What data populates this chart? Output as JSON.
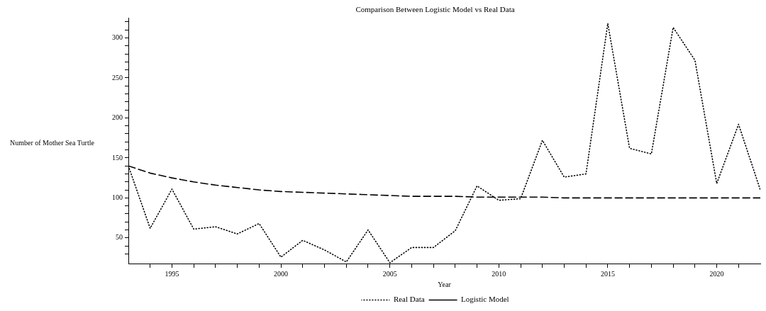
{
  "chart_data": {
    "type": "line",
    "title": "Comparison Between Logistic Model vs Real Data",
    "xlabel": "Year",
    "ylabel": "Number of Mother Sea Turtle",
    "x": [
      1993,
      1994,
      1995,
      1996,
      1997,
      1998,
      1999,
      2000,
      2001,
      2002,
      2003,
      2004,
      2005,
      2006,
      2007,
      2008,
      2009,
      2010,
      2011,
      2012,
      2013,
      2014,
      2015,
      2016,
      2017,
      2018,
      2019,
      2020,
      2021,
      2022
    ],
    "series": [
      {
        "name": "Real Data",
        "color": "#000000",
        "line_style": "dotted",
        "values": [
          140,
          62,
          111,
          61,
          64,
          55,
          68,
          26,
          47,
          35,
          20,
          60,
          19,
          38,
          38,
          59,
          115,
          97,
          99,
          172,
          126,
          130,
          318,
          162,
          155,
          313,
          272,
          118,
          192,
          110
        ]
      },
      {
        "name": "Logistic Model",
        "color": "#000000",
        "line_style": "dashed",
        "values": [
          140,
          131,
          125,
          120,
          116,
          113,
          110,
          108,
          107,
          106,
          105,
          104,
          103,
          102,
          102,
          102,
          101,
          101,
          101,
          101,
          100,
          100,
          100,
          100,
          100,
          100,
          100,
          100,
          100,
          100
        ]
      }
    ],
    "xlim": [
      1993,
      2022
    ],
    "xticks": [
      {
        "value": 1994,
        "label": null
      },
      1995,
      {
        "value": 1996,
        "label": null
      },
      {
        "value": 1997,
        "label": null
      },
      {
        "value": 1998,
        "label": null
      },
      {
        "value": 1999,
        "label": null
      },
      2000,
      {
        "value": 2001,
        "label": null
      },
      {
        "value": 2002,
        "label": null
      },
      {
        "value": 2003,
        "label": null
      },
      {
        "value": 2004,
        "label": null
      },
      2005,
      {
        "value": 2006,
        "label": null
      },
      {
        "value": 2007,
        "label": null
      },
      {
        "value": 2008,
        "label": null
      },
      {
        "value": 2009,
        "label": null
      },
      2010,
      {
        "value": 2011,
        "label": null
      },
      {
        "value": 2012,
        "label": null
      },
      {
        "value": 2013,
        "label": null
      },
      {
        "value": 2014,
        "label": null
      },
      2015,
      {
        "value": 2016,
        "label": null
      },
      {
        "value": 2017,
        "label": null
      },
      {
        "value": 2018,
        "label": null
      },
      {
        "value": 2019,
        "label": null
      },
      2020,
      {
        "value": 2021,
        "label": null
      }
    ],
    "ylim": [
      18,
      325
    ],
    "yticks": [
      {
        "value": 30,
        "label": null
      },
      {
        "value": 40,
        "label": null
      },
      50,
      {
        "value": 60,
        "label": null
      },
      {
        "value": 70,
        "label": null
      },
      {
        "value": 80,
        "label": null
      },
      {
        "value": 90,
        "label": null
      },
      100,
      {
        "value": 110,
        "label": null
      },
      {
        "value": 120,
        "label": null
      },
      {
        "value": 130,
        "label": null
      },
      {
        "value": 140,
        "label": null
      },
      150,
      {
        "value": 160,
        "label": null
      },
      {
        "value": 170,
        "label": null
      },
      {
        "value": 180,
        "label": null
      },
      {
        "value": 190,
        "label": null
      },
      200,
      {
        "value": 210,
        "label": null
      },
      {
        "value": 220,
        "label": null
      },
      {
        "value": 230,
        "label": null
      },
      {
        "value": 240,
        "label": null
      },
      250,
      {
        "value": 260,
        "label": null
      },
      {
        "value": 270,
        "label": null
      },
      {
        "value": 280,
        "label": null
      },
      {
        "value": 290,
        "label": null
      },
      300,
      {
        "value": 310,
        "label": null
      },
      {
        "value": 320,
        "label": null
      }
    ],
    "grid": false,
    "legend": "bottom",
    "marker": "none"
  }
}
